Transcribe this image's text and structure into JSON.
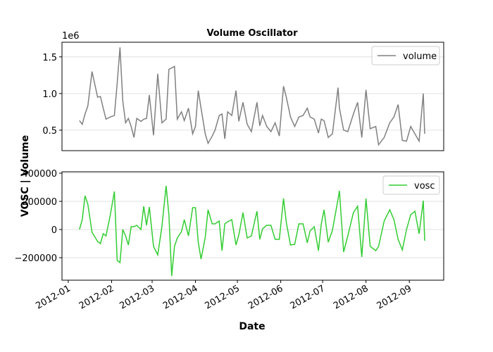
{
  "figure": {
    "xlabel": "Date",
    "ylabel": "VOSC | Volume"
  },
  "chart_data": [
    {
      "type": "line",
      "title": "Volume Oscillator",
      "offset_label": "1e6",
      "x": [
        8,
        10,
        12,
        14,
        17,
        21,
        23,
        25,
        27,
        30,
        33,
        35,
        37,
        39,
        41,
        43,
        45,
        47,
        49,
        52,
        54,
        56,
        58,
        61,
        64,
        67,
        70,
        72,
        74,
        76,
        78,
        81,
        83,
        86,
        89,
        91,
        93,
        95,
        98,
        100,
        103,
        105,
        108,
        110,
        112,
        114,
        117,
        120,
        122,
        125,
        128,
        131,
        135,
        137,
        139,
        142,
        145,
        148,
        151,
        154,
        156,
        159,
        162,
        165,
        168,
        171,
        173,
        176,
        179,
        181,
        183,
        186,
        189,
        193,
        194,
        197,
        200,
        204,
        207,
        210,
        213,
        216,
        220,
        222,
        226,
        230,
        233,
        236,
        239,
        242,
        245,
        248,
        251,
        254,
        255
      ],
      "series": [
        {
          "name": "volume",
          "color": "#808080",
          "values": [
            0.63,
            0.58,
            0.72,
            0.83,
            1.3,
            0.95,
            0.96,
            0.8,
            0.65,
            0.68,
            0.7,
            1.14,
            1.63,
            0.9,
            0.6,
            0.66,
            0.55,
            0.4,
            0.66,
            0.62,
            0.65,
            0.66,
            0.98,
            0.43,
            1.27,
            0.6,
            0.65,
            1.33,
            1.35,
            1.37,
            0.65,
            0.75,
            0.63,
            0.8,
            0.45,
            0.55,
            1.04,
            0.8,
            0.45,
            0.32,
            0.42,
            0.5,
            0.7,
            0.72,
            0.38,
            0.75,
            0.7,
            1.04,
            0.62,
            0.88,
            0.58,
            0.48,
            0.88,
            0.56,
            0.7,
            0.55,
            0.48,
            0.6,
            0.42,
            1.1,
            0.95,
            0.68,
            0.55,
            0.68,
            0.7,
            0.8,
            0.68,
            0.65,
            0.46,
            0.65,
            0.63,
            0.4,
            0.45,
            1.08,
            0.8,
            0.5,
            0.48,
            0.72,
            0.88,
            0.4,
            1.05,
            0.52,
            0.55,
            0.3,
            0.4,
            0.6,
            0.68,
            0.85,
            0.36,
            0.35,
            0.55,
            0.45,
            0.35,
            1.0,
            0.45
          ]
        }
      ],
      "xlim": [
        -4.5,
        268.6
      ],
      "ylim": [
        0.22,
        1.7
      ],
      "yticks": [
        0.5,
        {
          "value": 1,
          "label": "1.0"
        },
        1.5
      ],
      "grid": true,
      "legend": "upper right"
    },
    {
      "type": "line",
      "x": [
        8,
        10,
        12,
        14,
        17,
        21,
        23,
        25,
        27,
        30,
        33,
        35,
        37,
        39,
        41,
        43,
        45,
        47,
        49,
        52,
        54,
        56,
        58,
        61,
        64,
        67,
        70,
        72,
        74,
        76,
        78,
        81,
        83,
        86,
        89,
        91,
        93,
        95,
        98,
        100,
        103,
        105,
        108,
        110,
        112,
        114,
        117,
        120,
        122,
        125,
        128,
        131,
        135,
        137,
        139,
        142,
        145,
        148,
        151,
        154,
        156,
        159,
        162,
        165,
        168,
        171,
        173,
        176,
        179,
        181,
        183,
        186,
        189,
        193,
        194,
        197,
        200,
        204,
        207,
        210,
        213,
        216,
        220,
        222,
        226,
        230,
        233,
        236,
        239,
        242,
        245,
        248,
        251,
        254,
        255
      ],
      "series": [
        {
          "name": "vosc",
          "color": "#32cd32",
          "values": [
            0,
            70000,
            240000,
            180000,
            -20000,
            -85000,
            -100000,
            -30000,
            -45000,
            100000,
            270000,
            -220000,
            -235000,
            0,
            -45000,
            -110000,
            20000,
            20000,
            30000,
            0,
            165000,
            30000,
            160000,
            -120000,
            -180000,
            20000,
            310000,
            105000,
            -330000,
            -120000,
            -60000,
            -15000,
            70000,
            -45000,
            155000,
            155000,
            -90000,
            -210000,
            -55000,
            140000,
            40000,
            40000,
            60000,
            -150000,
            40000,
            55000,
            70000,
            -110000,
            -40000,
            120000,
            -60000,
            -45000,
            130000,
            -70000,
            5000,
            30000,
            30000,
            -70000,
            -70000,
            220000,
            50000,
            -110000,
            -105000,
            40000,
            40000,
            -95000,
            -10000,
            20000,
            -150000,
            40000,
            140000,
            -90000,
            -5000,
            215000,
            275000,
            -160000,
            -45000,
            120000,
            165000,
            -195000,
            220000,
            -120000,
            -150000,
            -120000,
            60000,
            140000,
            70000,
            -70000,
            -145000,
            0,
            105000,
            130000,
            -30000,
            205000,
            -80000
          ]
        }
      ],
      "xlim": [
        -4.5,
        268.6
      ],
      "ylim": [
        -360000,
        410000
      ],
      "xticks": [
        {
          "value": 0,
          "label": "2012-01"
        },
        {
          "value": 31,
          "label": "2012-02"
        },
        {
          "value": 60,
          "label": "2012-03"
        },
        {
          "value": 91,
          "label": "2012-04"
        },
        {
          "value": 121,
          "label": "2012-05"
        },
        {
          "value": 152,
          "label": "2012-06"
        },
        {
          "value": 182,
          "label": "2012-07"
        },
        {
          "value": 213,
          "label": "2012-08"
        },
        {
          "value": 244,
          "label": "2012-09"
        }
      ],
      "yticks": [
        {
          "value": -200000,
          "label": "−200000"
        },
        0,
        200000,
        400000
      ],
      "grid": true,
      "legend": "upper right"
    }
  ]
}
